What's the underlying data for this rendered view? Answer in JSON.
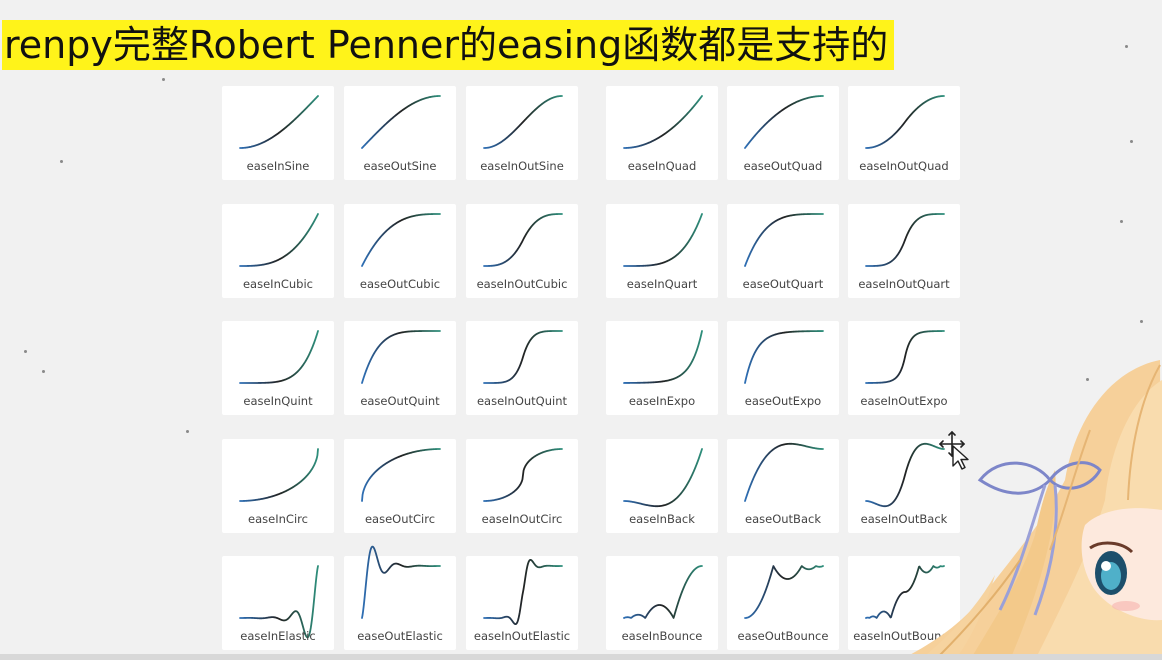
{
  "title": "renpy完整Robert Penner的easing函数都是支持的",
  "colors": {
    "title_highlight": "#fff31a",
    "curve_start": "#2e6fb5",
    "curve_mid": "#222222",
    "curve_end": "#2e8f7c",
    "card": "#ffffff",
    "background": "#f1f1f1"
  },
  "icons": {
    "cursor": "move-cursor-icon",
    "character": "anime-girl-mascot"
  },
  "easings": [
    {
      "label": "easeInSine",
      "fn": "easeInSine"
    },
    {
      "label": "easeOutSine",
      "fn": "easeOutSine"
    },
    {
      "label": "easeInOutSine",
      "fn": "easeInOutSine"
    },
    {
      "label": "easeInQuad",
      "fn": "easeInQuad"
    },
    {
      "label": "easeOutQuad",
      "fn": "easeOutQuad"
    },
    {
      "label": "easeInOutQuad",
      "fn": "easeInOutQuad"
    },
    {
      "label": "easeInCubic",
      "fn": "easeInCubic"
    },
    {
      "label": "easeOutCubic",
      "fn": "easeOutCubic"
    },
    {
      "label": "easeInOutCubic",
      "fn": "easeInOutCubic"
    },
    {
      "label": "easeInQuart",
      "fn": "easeInQuart"
    },
    {
      "label": "easeOutQuart",
      "fn": "easeOutQuart"
    },
    {
      "label": "easeInOutQuart",
      "fn": "easeInOutQuart"
    },
    {
      "label": "easeInQuint",
      "fn": "easeInQuint"
    },
    {
      "label": "easeOutQuint",
      "fn": "easeOutQuint"
    },
    {
      "label": "easeInOutQuint",
      "fn": "easeInOutQuint"
    },
    {
      "label": "easeInExpo",
      "fn": "easeInExpo"
    },
    {
      "label": "easeOutExpo",
      "fn": "easeOutExpo"
    },
    {
      "label": "easeInOutExpo",
      "fn": "easeInOutExpo"
    },
    {
      "label": "easeInCirc",
      "fn": "easeInCirc"
    },
    {
      "label": "easeOutCirc",
      "fn": "easeOutCirc"
    },
    {
      "label": "easeInOutCirc",
      "fn": "easeInOutCirc"
    },
    {
      "label": "easeInBack",
      "fn": "easeInBack"
    },
    {
      "label": "easeOutBack",
      "fn": "easeOutBack"
    },
    {
      "label": "easeInOutBack",
      "fn": "easeInOutBack"
    },
    {
      "label": "easeInElastic",
      "fn": "easeInElastic"
    },
    {
      "label": "easeOutElastic",
      "fn": "easeOutElastic"
    },
    {
      "label": "easeInOutElastic",
      "fn": "easeInOutElastic"
    },
    {
      "label": "easeInBounce",
      "fn": "easeInBounce"
    },
    {
      "label": "easeOutBounce",
      "fn": "easeOutBounce"
    },
    {
      "label": "easeInOutBounce",
      "fn": "easeInOutBounce"
    }
  ]
}
